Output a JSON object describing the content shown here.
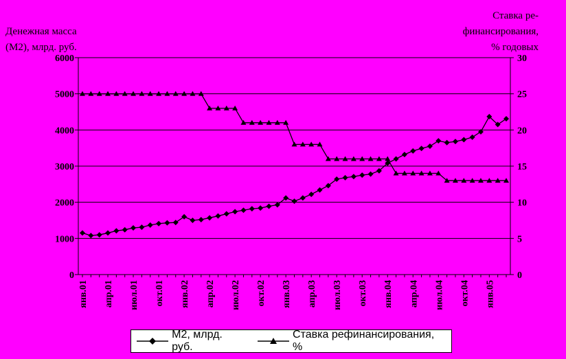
{
  "chart_data": {
    "type": "line",
    "ylabel_left": "Денежная масса (М2), млрд. руб.",
    "ylabel_left_lines": [
      "Денежная масса",
      "(М2), млрд. руб."
    ],
    "ylabel_right": "Ставка рефинансирования, % годовых",
    "ylabel_right_lines": [
      "Ставка ре-",
      "финансирования,",
      "% годовых"
    ],
    "ylim_left": [
      0,
      6000
    ],
    "yticks_left": [
      "0",
      "1000",
      "2000",
      "3000",
      "4000",
      "5000",
      "6000"
    ],
    "ylim_right": [
      0,
      30
    ],
    "yticks_right": [
      "0",
      "5",
      "10",
      "15",
      "20",
      "25",
      "30"
    ],
    "x_tick_labels": [
      "янв.01",
      "апр.01",
      "июл.01",
      "окт.01",
      "янв.02",
      "апр.02",
      "июл.02",
      "окт.02",
      "янв.03",
      "апр.03",
      "июл.03",
      "окт.03",
      "янв.04",
      "апр.04",
      "июл.04",
      "окт.04",
      "янв.05"
    ],
    "x": [
      "янв.01",
      "фев.01",
      "мар.01",
      "апр.01",
      "май.01",
      "июн.01",
      "июл.01",
      "авг.01",
      "сен.01",
      "окт.01",
      "ноя.01",
      "дек.01",
      "янв.02",
      "фев.02",
      "мар.02",
      "апр.02",
      "май.02",
      "июн.02",
      "июл.02",
      "авг.02",
      "сен.02",
      "окт.02",
      "ноя.02",
      "дек.02",
      "янв.03",
      "фев.03",
      "мар.03",
      "апр.03",
      "май.03",
      "июн.03",
      "июл.03",
      "авг.03",
      "сен.03",
      "окт.03",
      "ноя.03",
      "дек.03",
      "янв.04",
      "фев.04",
      "мар.04",
      "апр.04",
      "май.04",
      "июн.04",
      "июл.04",
      "авг.04",
      "сен.04",
      "окт.04",
      "ноя.04",
      "дек.04",
      "янв.05",
      "фев.05",
      "мар.05"
    ],
    "grid": "horizontal",
    "legend_position": "bottom",
    "series": [
      {
        "name": "М2, млрд. руб.",
        "axis": "left",
        "marker": "diamond",
        "values": [
          1150,
          1080,
          1100,
          1150,
          1210,
          1240,
          1290,
          1310,
          1370,
          1410,
          1430,
          1440,
          1600,
          1500,
          1520,
          1570,
          1620,
          1680,
          1740,
          1780,
          1820,
          1840,
          1890,
          1930,
          2120,
          2030,
          2120,
          2220,
          2340,
          2460,
          2640,
          2680,
          2710,
          2750,
          2780,
          2870,
          3080,
          3200,
          3320,
          3420,
          3490,
          3550,
          3700,
          3650,
          3680,
          3730,
          3800,
          3950,
          4370,
          4150,
          4310
        ]
      },
      {
        "name": "Ставка рефинансирования, %",
        "axis": "right",
        "marker": "triangle",
        "values": [
          25,
          25,
          25,
          25,
          25,
          25,
          25,
          25,
          25,
          25,
          25,
          25,
          25,
          25,
          25,
          23,
          23,
          23,
          23,
          21,
          21,
          21,
          21,
          21,
          21,
          18,
          18,
          18,
          18,
          16,
          16,
          16,
          16,
          16,
          16,
          16,
          16,
          14,
          14,
          14,
          14,
          14,
          14,
          13,
          13,
          13,
          13,
          13,
          13,
          13,
          13
        ]
      }
    ]
  }
}
